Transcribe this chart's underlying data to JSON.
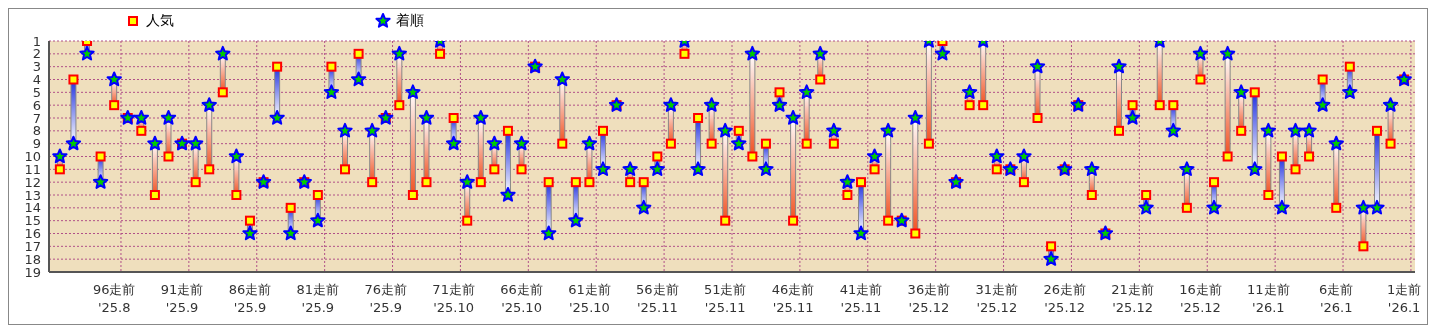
{
  "chart_data": {
    "type": "scatter",
    "categories": [
      null,
      null,
      null,
      null,
      "96走前\n'25.8",
      null,
      null,
      null,
      null,
      "91走前\n'25.9",
      null,
      null,
      null,
      null,
      "86走前\n'25.9",
      null,
      null,
      null,
      null,
      "81走前\n'25.9",
      null,
      null,
      null,
      null,
      "76走前\n'25.9",
      null,
      null,
      null,
      null,
      "71走前\n'25.10",
      null,
      null,
      null,
      null,
      "66走前\n'25.10",
      null,
      null,
      null,
      null,
      "61走前\n'25.10",
      null,
      null,
      null,
      null,
      "56走前\n'25.11",
      null,
      null,
      null,
      null,
      "51走前\n'25.11",
      null,
      null,
      null,
      null,
      "46走前\n'25.11",
      null,
      null,
      null,
      null,
      "41走前\n'25.11",
      null,
      null,
      null,
      null,
      "36走前\n'25.12",
      null,
      null,
      null,
      null,
      "31走前\n'25.12",
      null,
      null,
      null,
      null,
      "26走前\n'25.12",
      null,
      null,
      null,
      null,
      "21走前\n'25.12",
      null,
      null,
      null,
      null,
      "16走前\n'25.12",
      null,
      null,
      null,
      null,
      "11走前\n'26.1",
      null,
      null,
      null,
      null,
      "6走前\n'26.1",
      null,
      null,
      null,
      null,
      "1走前\n'26.1"
    ],
    "series": [
      {
        "name": "人気",
        "color": "#ff0000",
        "marker": "square",
        "values": [
          11,
          4,
          1,
          10,
          6,
          7,
          8,
          13,
          10,
          9,
          12,
          11,
          5,
          13,
          15,
          12,
          3,
          14,
          12,
          13,
          3,
          11,
          2,
          12,
          7,
          6,
          13,
          12,
          2,
          7,
          15,
          12,
          11,
          8,
          11,
          3,
          12,
          9,
          12,
          12,
          8,
          6,
          12,
          12,
          10,
          9,
          2,
          7,
          9,
          15,
          8,
          10,
          9,
          5,
          15,
          9,
          4,
          9,
          13,
          12,
          11,
          15,
          15,
          16,
          9,
          1,
          12,
          6,
          6,
          11,
          11,
          12,
          7,
          17,
          11,
          6,
          13,
          16,
          8,
          6,
          13,
          6,
          6,
          14,
          4,
          12,
          10,
          8,
          5,
          13,
          10,
          11,
          10,
          4,
          14,
          3,
          17,
          8,
          9,
          4
        ]
      },
      {
        "name": "着順",
        "color": "#0000ff",
        "marker": "star",
        "values": [
          10,
          9,
          2,
          12,
          4,
          7,
          7,
          9,
          7,
          9,
          9,
          6,
          2,
          10,
          16,
          12,
          7,
          16,
          12,
          15,
          5,
          8,
          4,
          8,
          7,
          2,
          5,
          7,
          1,
          9,
          12,
          7,
          9,
          13,
          9,
          3,
          16,
          4,
          15,
          9,
          11,
          6,
          11,
          14,
          11,
          6,
          1,
          11,
          6,
          8,
          9,
          2,
          11,
          6,
          7,
          5,
          2,
          8,
          12,
          16,
          10,
          8,
          15,
          7,
          1,
          2,
          12,
          5,
          1,
          10,
          11,
          10,
          3,
          18,
          11,
          6,
          11,
          16,
          3,
          7,
          14,
          1,
          8,
          11,
          2,
          14,
          2,
          5,
          11,
          8,
          14,
          8,
          8,
          6,
          9,
          5,
          14,
          14,
          6,
          4
        ]
      }
    ],
    "ylim": [
      19,
      1
    ],
    "yticks": [
      1,
      2,
      3,
      4,
      5,
      6,
      7,
      8,
      9,
      10,
      11,
      12,
      13,
      14,
      15,
      16,
      17,
      18,
      19
    ],
    "grid": true,
    "legend": "top left"
  }
}
